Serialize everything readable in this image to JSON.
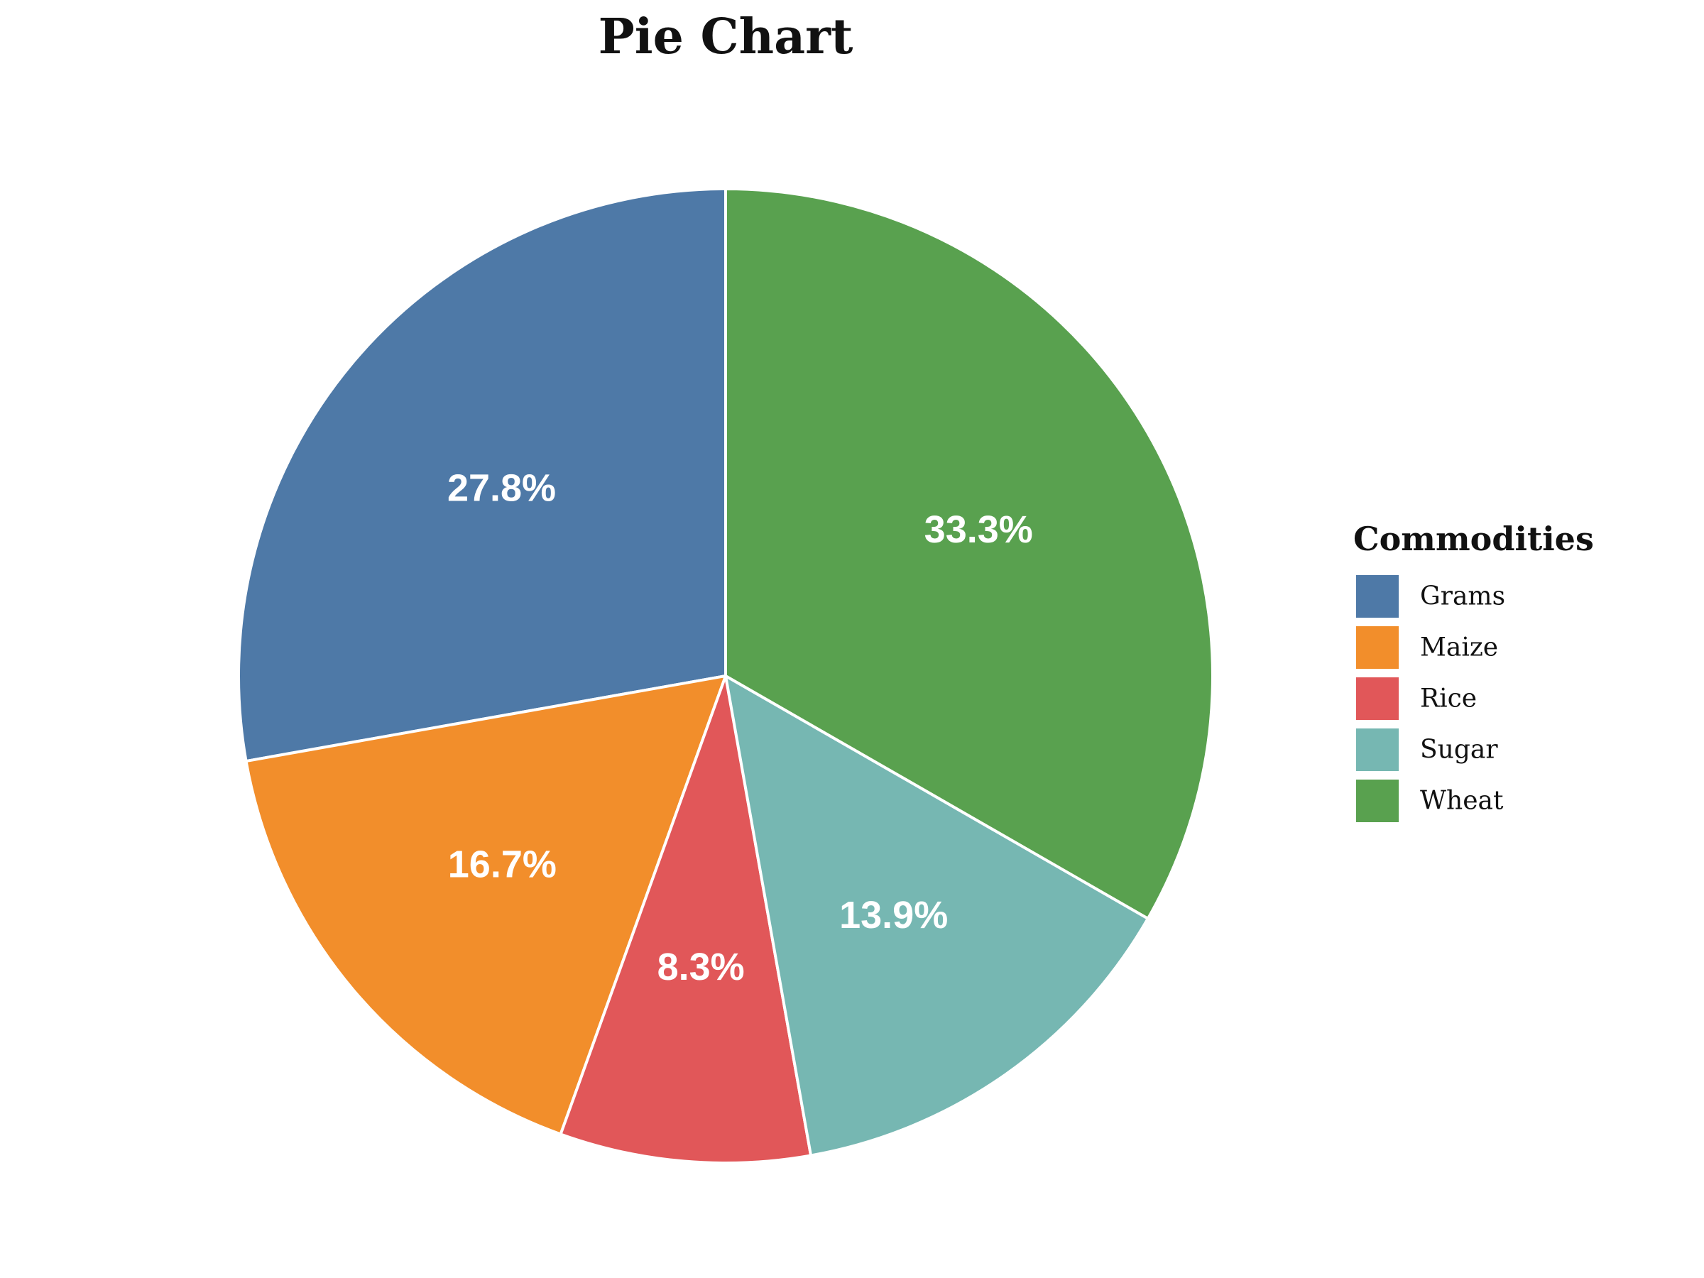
{
  "chart_data": {
    "type": "pie",
    "title": "Pie Chart",
    "legend": {
      "title": "Commodities",
      "placement": "right"
    },
    "slices": [
      {
        "name": "Grams",
        "value": 27.8,
        "label": "27.8%",
        "color": "#4E79A7"
      },
      {
        "name": "Maize",
        "value": 16.7,
        "label": "16.7%",
        "color": "#F28E2B"
      },
      {
        "name": "Rice",
        "value": 8.3,
        "label": "8.3%",
        "color": "#E15759"
      },
      {
        "name": "Sugar",
        "value": 13.9,
        "label": "13.9%",
        "color": "#76B7B2"
      },
      {
        "name": "Wheat",
        "value": 33.3,
        "label": "33.3%",
        "color": "#59A14F"
      }
    ],
    "start_angle": "top",
    "direction": "counter-clockwise"
  }
}
